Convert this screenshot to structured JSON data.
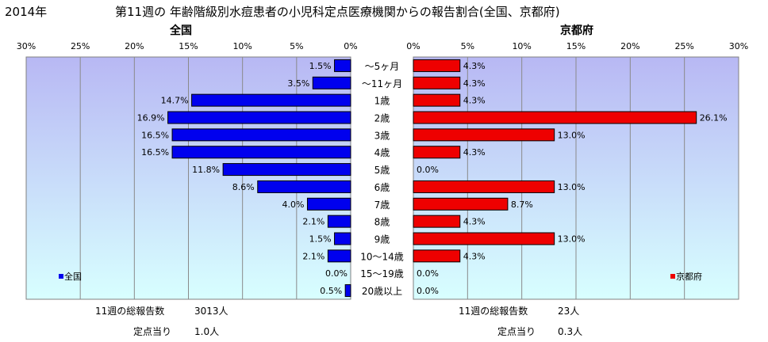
{
  "header": {
    "year": "2014年",
    "title": "第11週の 年齢階級別水痘患者の小児科定点医療機関からの報告割合(全国、京都府)"
  },
  "panels": {
    "left_title": "全国",
    "right_title": "京都府",
    "left_legend": "全国",
    "right_legend": "京都府"
  },
  "footer": {
    "left": {
      "total_label": "11週の総報告数",
      "total_value": "3013人",
      "per_label": "定点当り",
      "per_value": "1.0人"
    },
    "right": {
      "total_label": "11週の総報告数",
      "total_value": "23人",
      "per_label": "定点当り",
      "per_value": "0.3人"
    }
  },
  "colors": {
    "national": "#0000ee",
    "kyoto": "#ee0000",
    "plot_top": "#b8b8f4",
    "plot_bottom": "#d8ffff"
  },
  "chart_data": {
    "type": "bar",
    "orientation": "horizontal",
    "categories": [
      "〜5ヶ月",
      "〜11ヶ月",
      "1歳",
      "2歳",
      "3歳",
      "4歳",
      "5歳",
      "6歳",
      "7歳",
      "8歳",
      "9歳",
      "10〜14歳",
      "15〜19歳",
      "20歳以上"
    ],
    "series": [
      {
        "name": "全国",
        "values": [
          1.5,
          3.5,
          14.7,
          16.9,
          16.5,
          16.5,
          11.8,
          8.6,
          4.0,
          2.1,
          1.5,
          2.1,
          0.0,
          0.5
        ],
        "labels": [
          "1.5%",
          "3.5%",
          "14.7%",
          "16.9%",
          "16.5%",
          "16.5%",
          "11.8%",
          "8.6%",
          "4.0%",
          "2.1%",
          "1.5%",
          "2.1%",
          "0.0%",
          "0.5%"
        ]
      },
      {
        "name": "京都府",
        "values": [
          4.3,
          4.3,
          4.3,
          26.1,
          13.0,
          4.3,
          0.0,
          13.0,
          8.7,
          4.3,
          13.0,
          4.3,
          0.0,
          0.0
        ],
        "labels": [
          "4.3%",
          "4.3%",
          "4.3%",
          "26.1%",
          "13.0%",
          "4.3%",
          "0.0%",
          "13.0%",
          "8.7%",
          "4.3%",
          "13.0%",
          "4.3%",
          "0.0%",
          "0.0%"
        ]
      }
    ],
    "xlim": [
      0,
      30
    ],
    "left_ticks": [
      "30%",
      "25%",
      "20%",
      "15%",
      "10%",
      "5%",
      "0%"
    ],
    "right_ticks": [
      "0%",
      "5%",
      "10%",
      "15%",
      "20%",
      "25%",
      "30%"
    ],
    "grid": true
  }
}
